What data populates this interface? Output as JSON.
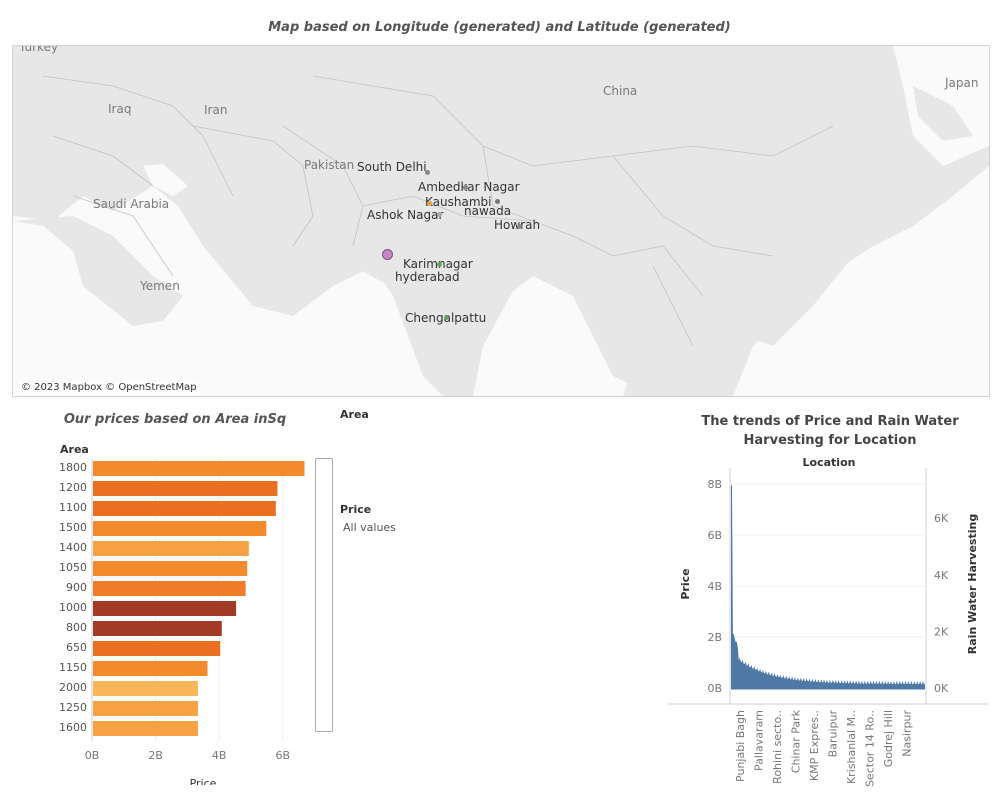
{
  "map": {
    "title": "Map based on Longitude (generated) and Latitude (generated)",
    "attribution": "© 2023 Mapbox © OpenStreetMap",
    "countries": [
      "Turkey",
      "Iraq",
      "Iran",
      "Pakistan",
      "Saudi Arabia",
      "Yemen",
      "China",
      "Japan"
    ],
    "places": [
      "South Delhi",
      "Ambedkar Nagar",
      "Kaushambi",
      "nawada",
      "Ashok Nagar",
      "Howrah",
      "Karimnagar",
      "hyderabad",
      "Chengalpattu"
    ]
  },
  "bar": {
    "title": "Our prices based on Area inSq",
    "area_header": "Area",
    "legend_area_title": "Area",
    "legend_price_title": "Price",
    "legend_price_sub": "All values"
  },
  "line": {
    "title": "The trends of Price and Rain Water Harvesting for Location",
    "location_header": "Location"
  },
  "chart_data": [
    {
      "type": "bar",
      "orientation": "horizontal",
      "title": "Our prices based on Area inSq",
      "ylabel": "Area",
      "xlabel": "Price",
      "categories": [
        "1800",
        "1200",
        "1100",
        "1500",
        "1400",
        "1050",
        "900",
        "1000",
        "800",
        "650",
        "1150",
        "2000",
        "1250",
        "1600"
      ],
      "values": [
        6.65,
        5.8,
        5.75,
        5.45,
        4.9,
        4.85,
        4.8,
        4.5,
        4.05,
        4.0,
        3.6,
        3.3,
        3.3,
        3.3
      ],
      "value_unit": "B",
      "xlim": [
        0,
        7.2
      ],
      "x_ticks": [
        "0B",
        "2B",
        "4B",
        "6B"
      ],
      "colors": [
        "#f28a2e",
        "#ea6f23",
        "#ea6f23",
        "#f28a2e",
        "#f6a244",
        "#f28a2e",
        "#ee7c28",
        "#a23a26",
        "#a23a26",
        "#ea6f23",
        "#f28a2e",
        "#fbb65a",
        "#f6a244",
        "#f6a244"
      ],
      "grid": true
    },
    {
      "type": "area",
      "title": "The trends of Price and Rain Water Harvesting for Location",
      "xlabel": "Location",
      "ylabel": "Price",
      "y2label": "Rain Water Harvesting",
      "ylim": [
        0,
        8.5
      ],
      "y_ticks": [
        "0B",
        "2B",
        "4B",
        "6B",
        "8B"
      ],
      "y2lim": [
        0,
        7.2
      ],
      "y2_ticks": [
        "0K",
        "2K",
        "4K",
        "6K"
      ],
      "x_ticks": [
        "Punjabi Bagh",
        "Pallavaram",
        "Rohini secto..",
        "Chinar Park",
        "KMP Expres..",
        "Baruipur",
        "Krishanlal M..",
        "Sector 14 Ro..",
        "Godrej Hill",
        "Nasirpur"
      ],
      "color": "#4e79a7",
      "peak_price_B": 7.9
    }
  ]
}
